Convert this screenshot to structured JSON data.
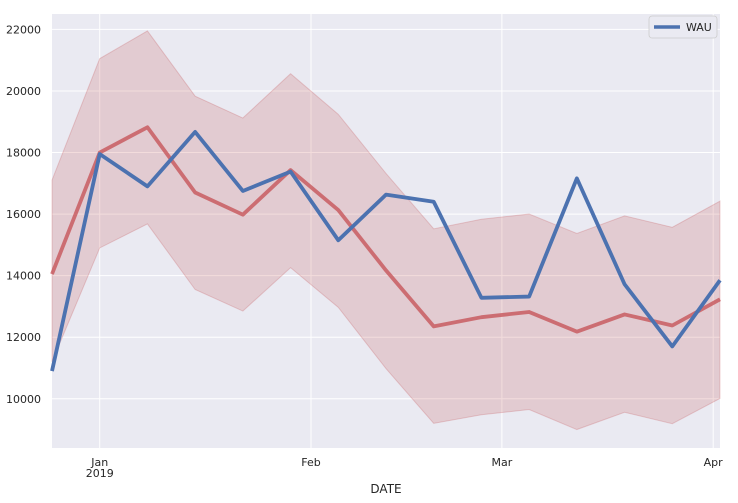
{
  "chart_data": {
    "type": "line",
    "title": "",
    "xlabel": "DATE",
    "ylabel": "",
    "x": [
      "2018-12-24",
      "2018-12-31",
      "2019-01-07",
      "2019-01-14",
      "2019-01-21",
      "2019-01-28",
      "2019-02-04",
      "2019-02-11",
      "2019-02-18",
      "2019-02-25",
      "2019-03-04",
      "2019-03-11",
      "2019-03-18",
      "2019-03-25",
      "2019-04-01"
    ],
    "xlim": [
      "2018-12-24",
      "2019-04-01"
    ],
    "ylim": [
      8400,
      22500
    ],
    "x_ticks": [
      {
        "date": "2018-12-31",
        "label": "Jan",
        "sublabel": "2019"
      },
      {
        "date": "2019-01-31",
        "label": "Feb",
        "sublabel": ""
      },
      {
        "date": "2019-02-28",
        "label": "Mar",
        "sublabel": ""
      },
      {
        "date": "2019-03-31",
        "label": "Apr",
        "sublabel": ""
      }
    ],
    "y_ticks": [
      10000,
      12000,
      14000,
      16000,
      18000,
      20000,
      22000
    ],
    "y_tick_labels": [
      "10000",
      "12000",
      "14000",
      "16000",
      "18000",
      "20000",
      "22000"
    ],
    "grid": true,
    "legend_position": "top-right",
    "series": [
      {
        "name": "WAU",
        "color": "#4c72b0",
        "values": [
          10900,
          17950,
          16900,
          18670,
          16750,
          17380,
          15150,
          16630,
          16400,
          13280,
          13320,
          17160,
          13720,
          11700,
          13850
        ]
      },
      {
        "name": "",
        "color": "#c44e52",
        "values": [
          14050,
          18000,
          18820,
          16700,
          15980,
          17430,
          16130,
          14170,
          12350,
          12650,
          12820,
          12180,
          12740,
          12380,
          13230
        ]
      }
    ],
    "band": {
      "color": "#c44e52",
      "lower": [
        11200,
        14900,
        15680,
        13550,
        12850,
        14260,
        12970,
        10980,
        9200,
        9480,
        9650,
        9000,
        9560,
        9190,
        10010
      ],
      "upper": [
        17100,
        21050,
        21950,
        19830,
        19120,
        20560,
        19240,
        17320,
        15520,
        15830,
        16000,
        15370,
        15940,
        15570,
        16420
      ]
    }
  }
}
